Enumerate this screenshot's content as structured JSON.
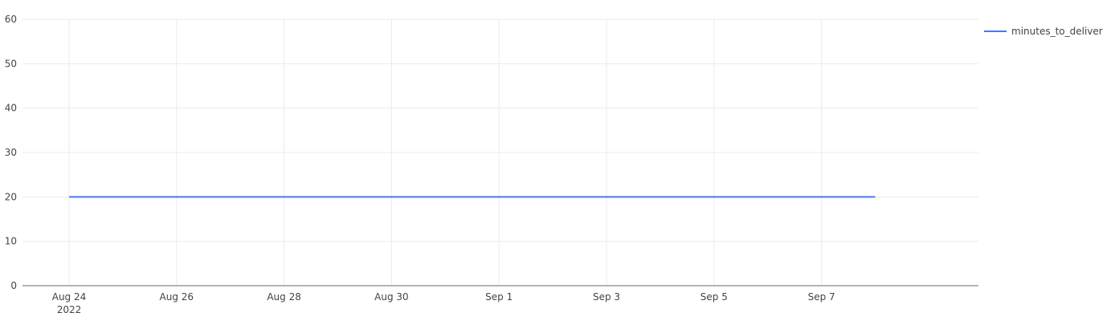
{
  "chart_data": {
    "type": "line",
    "x_dates": [
      "2022-08-24",
      "2022-09-08"
    ],
    "series": [
      {
        "name": "minutes_to_deliver",
        "color": "#4a78e8",
        "x": [
          "2022-08-24",
          "2022-09-08"
        ],
        "values": [
          20,
          20
        ]
      }
    ],
    "ylim": [
      0,
      60
    ],
    "xlim": [
      "2022-08-24",
      "2022-09-09"
    ],
    "yticks": [
      0,
      10,
      20,
      30,
      40,
      50,
      60
    ],
    "xticks": [
      {
        "date": "2022-08-24",
        "label": "Aug 24",
        "sublabel": "2022"
      },
      {
        "date": "2022-08-26",
        "label": "Aug 26"
      },
      {
        "date": "2022-08-28",
        "label": "Aug 28"
      },
      {
        "date": "2022-08-30",
        "label": "Aug 30"
      },
      {
        "date": "2022-09-01",
        "label": "Sep 1"
      },
      {
        "date": "2022-09-03",
        "label": "Sep 3"
      },
      {
        "date": "2022-09-05",
        "label": "Sep 5"
      },
      {
        "date": "2022-09-07",
        "label": "Sep 7"
      }
    ],
    "grid": true,
    "legend_position": "top-right",
    "title": "",
    "xlabel": "",
    "ylabel": ""
  }
}
